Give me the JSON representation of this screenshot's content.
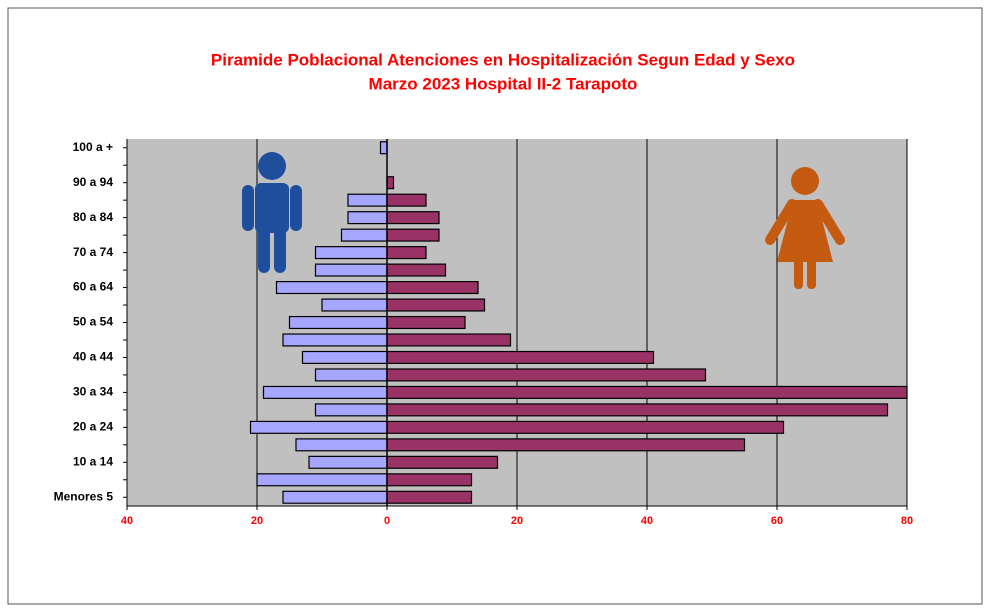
{
  "chart_data": {
    "type": "pyramid",
    "title": "Piramide Poblacional  Atenciones en Hospitalización Segun Edad y Sexo",
    "subtitle": "Marzo 2023 Hospital II-2 Tarapoto",
    "categories": [
      "Menores 5",
      null,
      "10 a 14",
      null,
      "20 a 24",
      null,
      "30 a 34",
      null,
      "40 a 44",
      null,
      "50 a 54",
      null,
      "60 a 64",
      null,
      "70 a 74",
      null,
      "80 a 84",
      null,
      "90 a 94",
      null,
      "100 a +"
    ],
    "series": [
      {
        "color": "#a6a6ff",
        "values": [
          -16,
          -20,
          -12,
          -14,
          -21,
          -11,
          -19,
          -11,
          -13,
          -16,
          -15,
          -10,
          -17,
          -11,
          -11,
          -7,
          -6,
          -6,
          0,
          0,
          -1
        ]
      },
      {
        "color": "#993366",
        "values": [
          13,
          13,
          17,
          55,
          61,
          77,
          80,
          49,
          41,
          19,
          12,
          15,
          14,
          9,
          6,
          8,
          8,
          6,
          1,
          0,
          0
        ]
      }
    ],
    "xlim": [
      -40,
      80
    ],
    "xticks": [
      {
        "value": -40,
        "label": "40"
      },
      {
        "value": -20,
        "label": "20"
      },
      0,
      20,
      40,
      60,
      80
    ],
    "grid": true,
    "plot_background": "#c0c0c0"
  }
}
